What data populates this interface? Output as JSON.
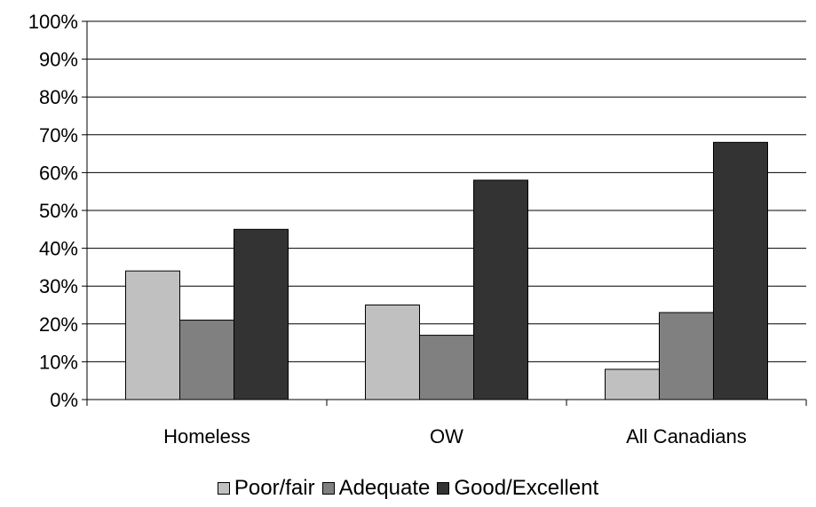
{
  "chart_data": {
    "type": "bar",
    "categories": [
      "Homeless",
      "OW",
      "All Canadians"
    ],
    "series": [
      {
        "name": "Poor/fair",
        "values": [
          34,
          25,
          8
        ],
        "color": "#c0c0c0"
      },
      {
        "name": "Adequate",
        "values": [
          21,
          17,
          23
        ],
        "color": "#808080"
      },
      {
        "name": "Good/Excellent",
        "values": [
          45,
          58,
          68
        ],
        "color": "#333333"
      }
    ],
    "ylim": [
      0,
      100
    ],
    "yticks": [
      "0%",
      "10%",
      "20%",
      "30%",
      "40%",
      "50%",
      "60%",
      "70%",
      "80%",
      "90%",
      "100%"
    ],
    "grid": true,
    "legend_position": "bottom"
  }
}
